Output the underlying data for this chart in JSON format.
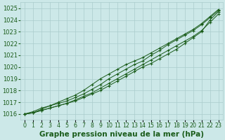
{
  "xlabel": "Graphe pression niveau de la mer (hPa)",
  "x": [
    0,
    1,
    2,
    3,
    4,
    5,
    6,
    7,
    8,
    9,
    10,
    11,
    12,
    13,
    14,
    15,
    16,
    17,
    18,
    19,
    20,
    21,
    22,
    23
  ],
  "series": [
    [
      1016.0,
      1016.1,
      1016.3,
      1016.5,
      1016.7,
      1016.9,
      1017.1,
      1017.4,
      1017.7,
      1018.0,
      1018.4,
      1018.8,
      1019.2,
      1019.6,
      1020.0,
      1020.3,
      1020.7,
      1021.1,
      1021.5,
      1022.0,
      1022.5,
      1023.0,
      1024.0,
      1024.7
    ],
    [
      1016.0,
      1016.1,
      1016.3,
      1016.5,
      1016.7,
      1016.9,
      1017.2,
      1017.5,
      1017.8,
      1018.2,
      1018.6,
      1019.0,
      1019.4,
      1019.8,
      1020.2,
      1020.6,
      1021.0,
      1021.4,
      1021.8,
      1022.2,
      1022.6,
      1023.1,
      1023.8,
      1024.5
    ],
    [
      1016.0,
      1016.1,
      1016.4,
      1016.7,
      1016.9,
      1017.1,
      1017.4,
      1017.7,
      1018.1,
      1018.5,
      1019.0,
      1019.4,
      1019.8,
      1020.2,
      1020.5,
      1021.0,
      1021.4,
      1021.9,
      1022.3,
      1022.7,
      1023.1,
      1023.6,
      1024.2,
      1024.8
    ],
    [
      1016.0,
      1016.2,
      1016.5,
      1016.7,
      1017.0,
      1017.3,
      1017.6,
      1018.0,
      1018.5,
      1019.0,
      1019.4,
      1019.8,
      1020.2,
      1020.5,
      1020.8,
      1021.2,
      1021.6,
      1022.0,
      1022.4,
      1022.8,
      1023.2,
      1023.7,
      1024.3,
      1024.9
    ]
  ],
  "line_color": "#1a5c1a",
  "marker_color": "#1a5c1a",
  "bg_color": "#cce8e8",
  "grid_color": "#aacccc",
  "label_color": "#1a5c1a",
  "ylim": [
    1015.5,
    1025.5
  ],
  "yticks": [
    1016,
    1017,
    1018,
    1019,
    1020,
    1021,
    1022,
    1023,
    1024,
    1025
  ],
  "xlim": [
    -0.5,
    23.5
  ],
  "xlabel_fontsize": 7.5,
  "tick_fontsize": 6.0
}
